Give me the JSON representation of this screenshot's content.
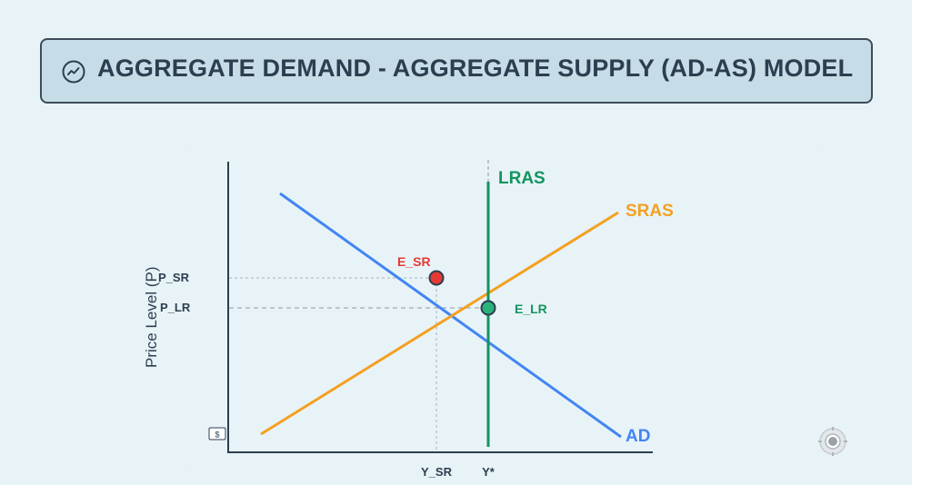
{
  "title": {
    "text": "AGGREGATE DEMAND - AGGREGATE SUPPLY (AD-AS) MODEL",
    "icon": "trend-line-icon"
  },
  "axes": {
    "y_label": "Price Level (P)",
    "x_ticks": {
      "y_sr": "Y_SR",
      "y_star": "Y*"
    },
    "y_ticks": {
      "p_sr": "P_SR",
      "p_lr": "P_LR"
    }
  },
  "curves": {
    "ad": {
      "label": "AD",
      "color": "#4285f4"
    },
    "sras": {
      "label": "SRAS",
      "color": "#f4a020"
    },
    "lras": {
      "label": "LRAS",
      "color": "#14935f"
    }
  },
  "points": {
    "e_sr": {
      "label": "E_SR",
      "color": "#e53935"
    },
    "e_lr": {
      "label": "E_LR",
      "color": "#2ab27b"
    }
  },
  "badge": {
    "text": "$"
  },
  "colors": {
    "background": "#e8f3f8",
    "title_bg": "#c6dde7",
    "title_border": "#3d4c58",
    "text": "#2c3e50"
  }
}
